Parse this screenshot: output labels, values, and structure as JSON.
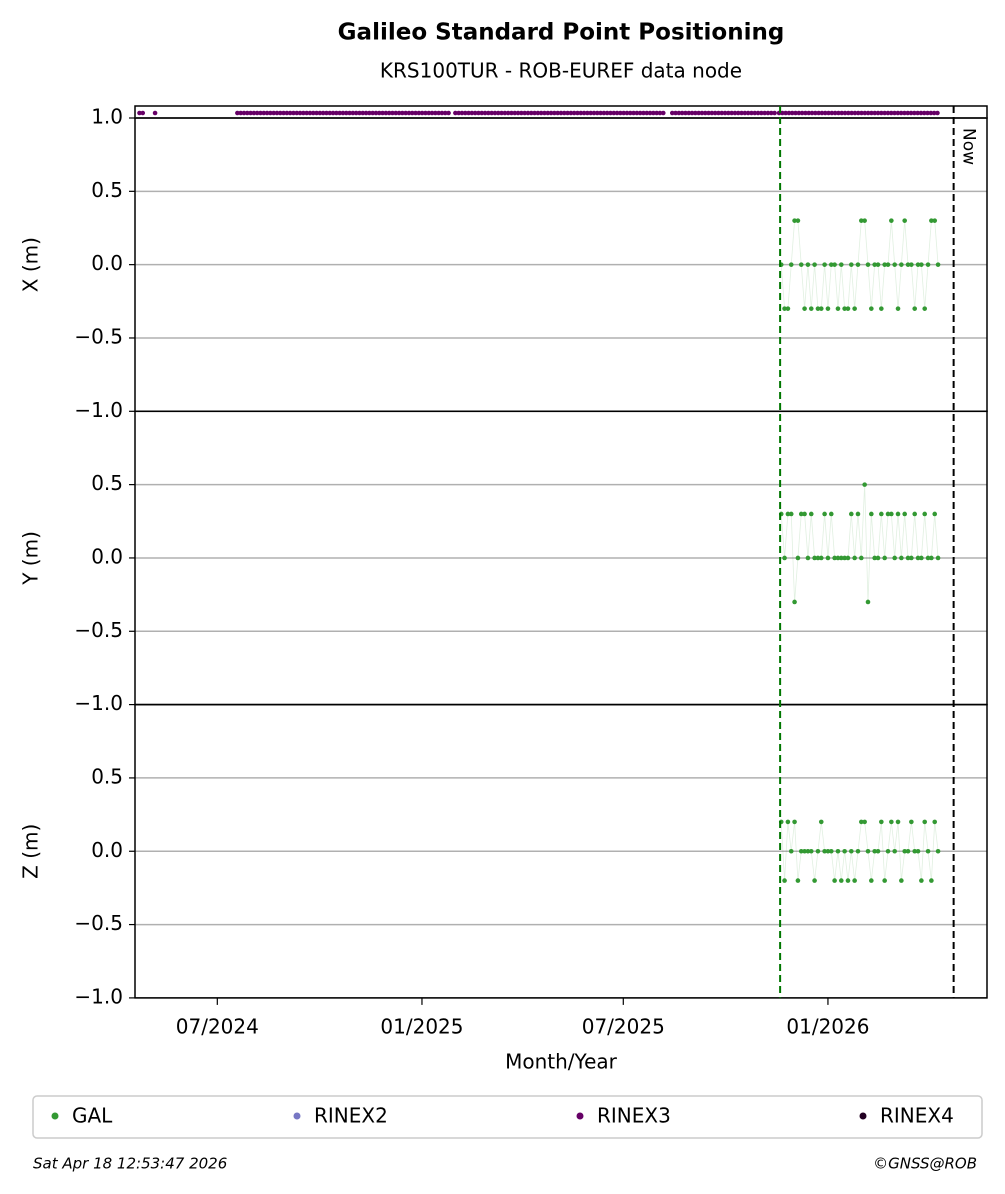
{
  "chart_data": {
    "type": "scatter",
    "title": "Galileo Standard Point Positioning",
    "subtitle": "KRS100TUR - ROB-EUREF data node",
    "xlabel": "Month/Year",
    "xlim": [
      "2024-04-18",
      "2026-05-24"
    ],
    "xticks": [
      {
        "value": "2024-07-01",
        "label": "07/2024"
      },
      {
        "value": "2025-01-01",
        "label": "01/2025"
      },
      {
        "value": "2025-07-01",
        "label": "07/2025"
      },
      {
        "value": "2026-01-01",
        "label": "01/2026"
      }
    ],
    "now": {
      "x": "2026-04-24",
      "label": "Now"
    },
    "start_line": {
      "x": "2025-11-19",
      "color": "#007700"
    },
    "availability": {
      "name": "RINEX3",
      "color": "#660066",
      "intervals": [
        [
          "2024-04-22",
          "2024-04-25"
        ],
        [
          "2024-05-06",
          "2024-05-06"
        ],
        [
          "2024-07-19",
          "2025-01-27"
        ],
        [
          "2025-01-31",
          "2025-08-07"
        ],
        [
          "2025-08-14",
          "2025-11-15"
        ],
        [
          "2025-11-18",
          "2026-04-10"
        ]
      ]
    },
    "x": [
      "2025-11-20",
      "2025-11-23",
      "2025-11-26",
      "2025-11-29",
      "2025-12-02",
      "2025-12-05",
      "2025-12-08",
      "2025-12-11",
      "2025-12-14",
      "2025-12-17",
      "2025-12-20",
      "2025-12-23",
      "2025-12-26",
      "2025-12-29",
      "2026-01-01",
      "2026-01-04",
      "2026-01-07",
      "2026-01-10",
      "2026-01-13",
      "2026-01-16",
      "2026-01-19",
      "2026-01-22",
      "2026-01-25",
      "2026-01-28",
      "2026-01-31",
      "2026-02-03",
      "2026-02-06",
      "2026-02-09",
      "2026-02-12",
      "2026-02-15",
      "2026-02-18",
      "2026-02-21",
      "2026-02-24",
      "2026-02-27",
      "2026-03-02",
      "2026-03-05",
      "2026-03-08",
      "2026-03-11",
      "2026-03-14",
      "2026-03-17",
      "2026-03-20",
      "2026-03-23",
      "2026-03-26",
      "2026-03-29",
      "2026-04-01",
      "2026-04-04",
      "2026-04-07",
      "2026-04-10"
    ],
    "panels": [
      {
        "ylabel": "X (m)",
        "ylim": [
          -1,
          1
        ],
        "yticks": [
          {
            "value": -1,
            "label": "−1.0"
          },
          {
            "value": -0.5,
            "label": "−0.5"
          },
          {
            "value": 0,
            "label": "0.0"
          },
          {
            "value": 0.5,
            "label": "0.5"
          },
          {
            "value": 1,
            "label": "1.0"
          }
        ],
        "series": [
          {
            "name": "GAL",
            "color": "#339933",
            "values": [
              0,
              -0.3,
              -0.3,
              0,
              0.3,
              0.3,
              0,
              -0.3,
              0,
              -0.3,
              0,
              -0.3,
              -0.3,
              0,
              -0.3,
              0,
              0,
              -0.3,
              0,
              -0.3,
              -0.3,
              0,
              -0.3,
              0,
              0.3,
              0.3,
              0,
              -0.3,
              0,
              0,
              -0.3,
              0,
              0,
              0.3,
              0,
              -0.3,
              0,
              0.3,
              0,
              0,
              -0.3,
              0,
              0,
              -0.3,
              0,
              0.3,
              0.3,
              0
            ]
          }
        ]
      },
      {
        "ylabel": "Y (m)",
        "ylim": [
          -1,
          1
        ],
        "yticks": [
          {
            "value": -1,
            "label": "−1.0"
          },
          {
            "value": -0.5,
            "label": "−0.5"
          },
          {
            "value": 0,
            "label": "0.0"
          },
          {
            "value": 0.5,
            "label": "0.5"
          }
        ],
        "series": [
          {
            "name": "GAL",
            "color": "#339933",
            "values": [
              0.3,
              0,
              0.3,
              0.3,
              -0.3,
              0,
              0.3,
              0.3,
              0,
              0.3,
              0,
              0,
              0,
              0.3,
              0,
              0.3,
              0,
              0,
              0,
              0,
              0,
              0.3,
              0,
              0.3,
              0,
              0.5,
              -0.3,
              0.3,
              0,
              0,
              0.3,
              0,
              0.3,
              0.3,
              0,
              0.3,
              0,
              0.3,
              0,
              0,
              0.3,
              0,
              0,
              0.3,
              0,
              0,
              0.3,
              0
            ]
          }
        ]
      },
      {
        "ylabel": "Z (m)",
        "ylim": [
          -1,
          1
        ],
        "yticks": [
          {
            "value": -1,
            "label": "−1.0"
          },
          {
            "value": -0.5,
            "label": "−0.5"
          },
          {
            "value": 0,
            "label": "0.0"
          },
          {
            "value": 0.5,
            "label": "0.5"
          }
        ],
        "series": [
          {
            "name": "GAL",
            "color": "#339933",
            "values": [
              0.2,
              -0.2,
              0.2,
              0,
              0.2,
              -0.2,
              0,
              0,
              0,
              0,
              -0.2,
              0,
              0.2,
              0,
              0,
              0,
              -0.2,
              0,
              -0.2,
              0,
              -0.2,
              0,
              -0.2,
              0,
              0.2,
              0.2,
              0,
              -0.2,
              0,
              0,
              0.2,
              -0.2,
              0,
              0.2,
              0,
              0.2,
              -0.2,
              0,
              0,
              0.2,
              0,
              0,
              -0.2,
              0.2,
              0,
              -0.2,
              0.2,
              0
            ]
          }
        ]
      }
    ],
    "legend": [
      {
        "name": "GAL",
        "color": "#339933"
      },
      {
        "name": "RINEX2",
        "color": "#7777c4"
      },
      {
        "name": "RINEX3",
        "color": "#660066"
      },
      {
        "name": "RINEX4",
        "color": "#220022"
      }
    ]
  },
  "footer": {
    "left": "Sat Apr 18 12:53:47 2026",
    "right": "©GNSS@ROB"
  }
}
